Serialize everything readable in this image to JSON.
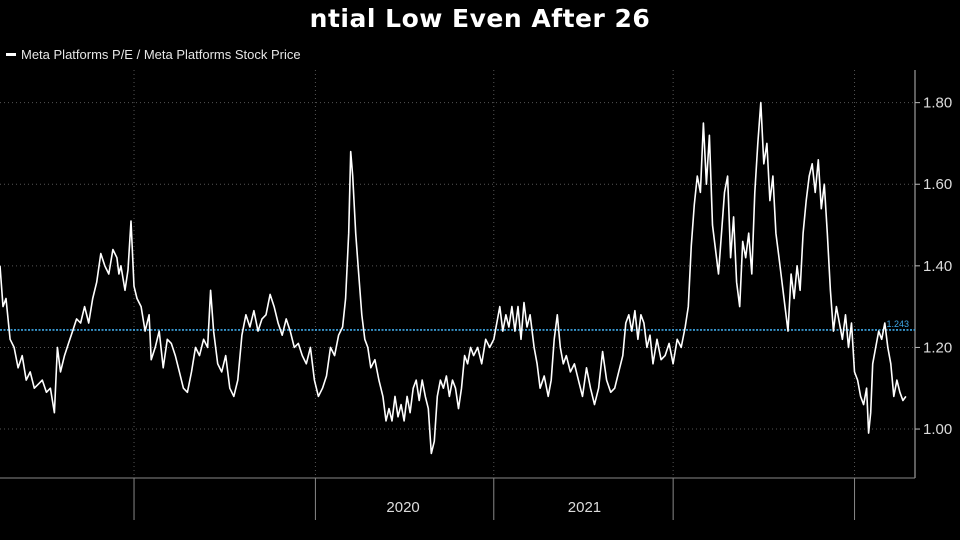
{
  "chart_data": {
    "type": "line",
    "title": "ntial Low Even After 26",
    "xlabel": "",
    "ylabel": "",
    "series": [
      {
        "name": "Meta Platforms P/E / Meta Platforms Stock Price",
        "color": "#ffffff",
        "points": [
          [
            0,
            1.4
          ],
          [
            3,
            1.3
          ],
          [
            6,
            1.32
          ],
          [
            10,
            1.22
          ],
          [
            14,
            1.2
          ],
          [
            18,
            1.15
          ],
          [
            22,
            1.18
          ],
          [
            26,
            1.12
          ],
          [
            30,
            1.14
          ],
          [
            34,
            1.1
          ],
          [
            38,
            1.11
          ],
          [
            42,
            1.12
          ],
          [
            46,
            1.09
          ],
          [
            50,
            1.1
          ],
          [
            54,
            1.04
          ],
          [
            57,
            1.2
          ],
          [
            60,
            1.14
          ],
          [
            64,
            1.18
          ],
          [
            68,
            1.21
          ],
          [
            72,
            1.24
          ],
          [
            76,
            1.27
          ],
          [
            80,
            1.26
          ],
          [
            84,
            1.3
          ],
          [
            88,
            1.26
          ],
          [
            92,
            1.32
          ],
          [
            96,
            1.36
          ],
          [
            100,
            1.43
          ],
          [
            104,
            1.4
          ],
          [
            108,
            1.38
          ],
          [
            112,
            1.44
          ],
          [
            116,
            1.42
          ],
          [
            118,
            1.38
          ],
          [
            120,
            1.4
          ],
          [
            124,
            1.34
          ],
          [
            127,
            1.39
          ],
          [
            130,
            1.51
          ],
          [
            133,
            1.35
          ],
          [
            136,
            1.32
          ],
          [
            140,
            1.3
          ],
          [
            144,
            1.24
          ],
          [
            148,
            1.28
          ],
          [
            150,
            1.17
          ],
          [
            154,
            1.2
          ],
          [
            158,
            1.24
          ],
          [
            162,
            1.15
          ],
          [
            166,
            1.22
          ],
          [
            170,
            1.21
          ],
          [
            174,
            1.18
          ],
          [
            178,
            1.14
          ],
          [
            182,
            1.1
          ],
          [
            186,
            1.09
          ],
          [
            190,
            1.14
          ],
          [
            194,
            1.2
          ],
          [
            198,
            1.18
          ],
          [
            202,
            1.22
          ],
          [
            206,
            1.2
          ],
          [
            209,
            1.34
          ],
          [
            212,
            1.24
          ],
          [
            216,
            1.16
          ],
          [
            220,
            1.14
          ],
          [
            224,
            1.18
          ],
          [
            228,
            1.1
          ],
          [
            232,
            1.08
          ],
          [
            236,
            1.12
          ],
          [
            240,
            1.23
          ],
          [
            244,
            1.28
          ],
          [
            248,
            1.25
          ],
          [
            252,
            1.29
          ],
          [
            256,
            1.24
          ],
          [
            260,
            1.27
          ],
          [
            264,
            1.28
          ],
          [
            268,
            1.33
          ],
          [
            272,
            1.3
          ],
          [
            276,
            1.26
          ],
          [
            280,
            1.23
          ],
          [
            284,
            1.27
          ],
          [
            288,
            1.24
          ],
          [
            292,
            1.2
          ],
          [
            296,
            1.21
          ],
          [
            300,
            1.18
          ],
          [
            304,
            1.16
          ],
          [
            308,
            1.2
          ],
          [
            312,
            1.12
          ],
          [
            316,
            1.08
          ],
          [
            320,
            1.1
          ],
          [
            324,
            1.13
          ],
          [
            328,
            1.2
          ],
          [
            332,
            1.18
          ],
          [
            336,
            1.23
          ],
          [
            340,
            1.25
          ],
          [
            343,
            1.32
          ],
          [
            346,
            1.48
          ],
          [
            348,
            1.68
          ],
          [
            350,
            1.62
          ],
          [
            353,
            1.48
          ],
          [
            356,
            1.38
          ],
          [
            359,
            1.28
          ],
          [
            362,
            1.22
          ],
          [
            365,
            1.2
          ],
          [
            368,
            1.15
          ],
          [
            372,
            1.17
          ],
          [
            376,
            1.12
          ],
          [
            380,
            1.08
          ],
          [
            383,
            1.02
          ],
          [
            386,
            1.05
          ],
          [
            389,
            1.02
          ],
          [
            392,
            1.08
          ],
          [
            395,
            1.03
          ],
          [
            398,
            1.06
          ],
          [
            401,
            1.02
          ],
          [
            404,
            1.08
          ],
          [
            407,
            1.04
          ],
          [
            410,
            1.1
          ],
          [
            413,
            1.12
          ],
          [
            416,
            1.07
          ],
          [
            419,
            1.12
          ],
          [
            422,
            1.08
          ],
          [
            425,
            1.05
          ],
          [
            428,
            0.94
          ],
          [
            431,
            0.97
          ],
          [
            434,
            1.08
          ],
          [
            437,
            1.12
          ],
          [
            440,
            1.1
          ],
          [
            443,
            1.13
          ],
          [
            446,
            1.08
          ],
          [
            449,
            1.12
          ],
          [
            452,
            1.1
          ],
          [
            455,
            1.05
          ],
          [
            458,
            1.1
          ],
          [
            461,
            1.18
          ],
          [
            464,
            1.16
          ],
          [
            467,
            1.2
          ],
          [
            470,
            1.18
          ],
          [
            474,
            1.2
          ],
          [
            478,
            1.16
          ],
          [
            482,
            1.22
          ],
          [
            486,
            1.2
          ],
          [
            490,
            1.22
          ],
          [
            493,
            1.26
          ],
          [
            496,
            1.3
          ],
          [
            499,
            1.24
          ],
          [
            502,
            1.28
          ],
          [
            505,
            1.25
          ],
          [
            508,
            1.3
          ],
          [
            511,
            1.24
          ],
          [
            514,
            1.3
          ],
          [
            517,
            1.22
          ],
          [
            520,
            1.31
          ],
          [
            523,
            1.25
          ],
          [
            526,
            1.28
          ],
          [
            530,
            1.2
          ],
          [
            533,
            1.16
          ],
          [
            536,
            1.1
          ],
          [
            540,
            1.13
          ],
          [
            544,
            1.08
          ],
          [
            547,
            1.12
          ],
          [
            550,
            1.22
          ],
          [
            553,
            1.28
          ],
          [
            556,
            1.2
          ],
          [
            559,
            1.16
          ],
          [
            562,
            1.18
          ],
          [
            566,
            1.14
          ],
          [
            570,
            1.16
          ],
          [
            574,
            1.12
          ],
          [
            578,
            1.08
          ],
          [
            582,
            1.15
          ],
          [
            586,
            1.1
          ],
          [
            590,
            1.06
          ],
          [
            594,
            1.1
          ],
          [
            598,
            1.19
          ],
          [
            602,
            1.12
          ],
          [
            606,
            1.09
          ],
          [
            610,
            1.1
          ],
          [
            614,
            1.14
          ],
          [
            618,
            1.18
          ],
          [
            621,
            1.26
          ],
          [
            624,
            1.28
          ],
          [
            627,
            1.24
          ],
          [
            630,
            1.29
          ],
          [
            633,
            1.22
          ],
          [
            636,
            1.28
          ],
          [
            639,
            1.26
          ],
          [
            642,
            1.2
          ],
          [
            645,
            1.23
          ],
          [
            648,
            1.16
          ],
          [
            652,
            1.22
          ],
          [
            656,
            1.17
          ],
          [
            660,
            1.18
          ],
          [
            664,
            1.21
          ],
          [
            668,
            1.16
          ],
          [
            672,
            1.22
          ],
          [
            676,
            1.2
          ],
          [
            680,
            1.25
          ],
          [
            683,
            1.3
          ],
          [
            686,
            1.45
          ],
          [
            689,
            1.55
          ],
          [
            692,
            1.62
          ],
          [
            695,
            1.58
          ],
          [
            698,
            1.75
          ],
          [
            701,
            1.6
          ],
          [
            704,
            1.72
          ],
          [
            707,
            1.5
          ],
          [
            710,
            1.44
          ],
          [
            713,
            1.38
          ],
          [
            716,
            1.48
          ],
          [
            719,
            1.58
          ],
          [
            722,
            1.62
          ],
          [
            725,
            1.42
          ],
          [
            728,
            1.52
          ],
          [
            731,
            1.36
          ],
          [
            734,
            1.3
          ],
          [
            737,
            1.46
          ],
          [
            740,
            1.42
          ],
          [
            743,
            1.48
          ],
          [
            746,
            1.38
          ],
          [
            749,
            1.58
          ],
          [
            752,
            1.7
          ],
          [
            755,
            1.8
          ],
          [
            758,
            1.65
          ],
          [
            761,
            1.7
          ],
          [
            764,
            1.56
          ],
          [
            767,
            1.62
          ],
          [
            770,
            1.48
          ],
          [
            773,
            1.42
          ],
          [
            776,
            1.36
          ],
          [
            779,
            1.3
          ],
          [
            782,
            1.24
          ],
          [
            785,
            1.38
          ],
          [
            788,
            1.32
          ],
          [
            791,
            1.4
          ],
          [
            794,
            1.34
          ],
          [
            797,
            1.48
          ],
          [
            800,
            1.56
          ],
          [
            803,
            1.62
          ],
          [
            806,
            1.65
          ],
          [
            809,
            1.58
          ],
          [
            812,
            1.66
          ],
          [
            815,
            1.54
          ],
          [
            818,
            1.6
          ],
          [
            821,
            1.48
          ],
          [
            824,
            1.34
          ],
          [
            827,
            1.24
          ],
          [
            830,
            1.3
          ],
          [
            833,
            1.26
          ],
          [
            836,
            1.22
          ],
          [
            839,
            1.28
          ],
          [
            842,
            1.2
          ],
          [
            845,
            1.26
          ],
          [
            848,
            1.14
          ],
          [
            851,
            1.12
          ],
          [
            854,
            1.08
          ],
          [
            857,
            1.06
          ],
          [
            860,
            1.1
          ],
          [
            862,
            0.99
          ],
          [
            864,
            1.04
          ],
          [
            866,
            1.16
          ],
          [
            869,
            1.2
          ],
          [
            872,
            1.24
          ],
          [
            875,
            1.22
          ],
          [
            878,
            1.26
          ],
          [
            881,
            1.2
          ],
          [
            884,
            1.16
          ],
          [
            887,
            1.08
          ],
          [
            890,
            1.12
          ],
          [
            893,
            1.09
          ],
          [
            896,
            1.07
          ],
          [
            899,
            1.08
          ]
        ]
      }
    ],
    "reference_line": {
      "value": 1.243,
      "label": "1.243",
      "color": "#3fa9e8"
    },
    "yticks": [
      1.0,
      1.2,
      1.4,
      1.6,
      1.8
    ],
    "ytick_labels": [
      "1.00",
      "1.20",
      "1.40",
      "1.60",
      "1.80"
    ],
    "ylim": [
      0.88,
      1.88
    ],
    "xlim": [
      0,
      908
    ],
    "xtick_labels": [
      {
        "label": "",
        "pos": 45
      },
      {
        "label": "",
        "pos": 225
      },
      {
        "label": "2020",
        "pos": 400
      },
      {
        "label": "2021",
        "pos": 580
      },
      {
        "label": "",
        "pos": 760
      },
      {
        "label": "",
        "pos": 878
      }
    ],
    "x_separators": [
      133,
      313,
      490,
      668,
      848
    ],
    "v_gridlines": [
      133,
      313,
      490,
      668,
      848
    ],
    "grid": true,
    "y_axis_side": "right",
    "legend_position": "top-left"
  }
}
